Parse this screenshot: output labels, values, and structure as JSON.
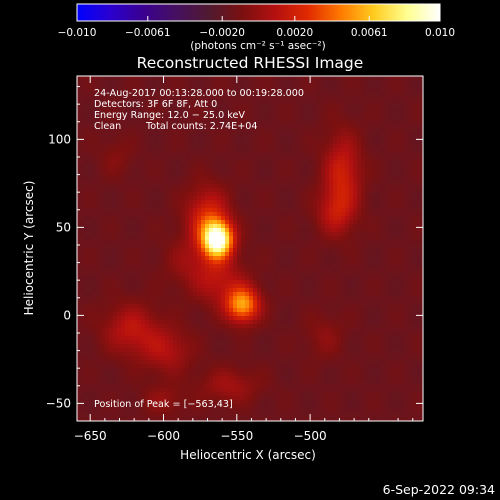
{
  "colorbar": {
    "min": -0.01,
    "max": 0.01,
    "ticks": [
      {
        "value": -0.01,
        "label": "−0.010"
      },
      {
        "value": -0.0061,
        "label": "−0.0061"
      },
      {
        "value": -0.002,
        "label": "−0.0020"
      },
      {
        "value": 0.002,
        "label": "0.0020"
      },
      {
        "value": 0.0061,
        "label": "0.0061"
      },
      {
        "value": 0.01,
        "label": "0.010"
      }
    ],
    "unit_label": "(photons cm⁻² s⁻¹ asec⁻²)",
    "colors": [
      "#0000ff",
      "#2a00d0",
      "#3a0090",
      "#451060",
      "#501a30",
      "#7a1010",
      "#b41010",
      "#e02a00",
      "#ff7a00",
      "#ffcc20",
      "#ffff90",
      "#ffffff"
    ]
  },
  "chart_data": {
    "type": "heatmap",
    "title": "Reconstructed RHESSI Image",
    "xlabel": "Heliocentric X (arcsec)",
    "ylabel": "Heliocentric Y (arcsec)",
    "xlim": [
      -659,
      -423
    ],
    "ylim": [
      -60,
      136
    ],
    "xticks": [
      {
        "value": -650,
        "label": "−650"
      },
      {
        "value": -600,
        "label": "−600"
      },
      {
        "value": -550,
        "label": "−550"
      },
      {
        "value": -500,
        "label": "−500"
      }
    ],
    "yticks": [
      {
        "value": -50,
        "label": "−50"
      },
      {
        "value": 0,
        "label": "0"
      },
      {
        "value": 50,
        "label": "50"
      },
      {
        "value": 100,
        "label": "100"
      }
    ],
    "annotations": {
      "time_range": "24‑Aug‑2017 00:13:28.000 to 00:19:28.000",
      "detectors": "Detectors: 3F 6F 8F, Att 0",
      "energy": "Energy Range: 12.0 − 25.0 keV",
      "method": "Clean",
      "counts": "Total counts: 2.74E+04",
      "peak": "Position of Peak = [−563,43]"
    },
    "peak_position": [
      -563,
      43
    ],
    "sources": [
      {
        "x": -563,
        "y": 43,
        "sx": 7,
        "sy": 7,
        "amp": 1.0
      },
      {
        "x": -570,
        "y": 55,
        "sx": 10,
        "sy": 12,
        "amp": 0.35
      },
      {
        "x": -546,
        "y": 6,
        "sx": 8,
        "sy": 7,
        "amp": 0.6
      },
      {
        "x": -562,
        "y": 20,
        "sx": 12,
        "sy": 10,
        "amp": 0.22
      },
      {
        "x": -583,
        "y": 30,
        "sx": 12,
        "sy": 10,
        "amp": 0.12
      },
      {
        "x": -478,
        "y": 80,
        "sx": 9,
        "sy": 16,
        "amp": 0.3
      },
      {
        "x": -483,
        "y": 58,
        "sx": 9,
        "sy": 9,
        "amp": 0.2
      },
      {
        "x": -622,
        "y": -8,
        "sx": 13,
        "sy": 10,
        "amp": 0.24
      },
      {
        "x": -598,
        "y": -20,
        "sx": 12,
        "sy": 9,
        "amp": 0.2
      },
      {
        "x": -555,
        "y": -40,
        "sx": 14,
        "sy": 7,
        "amp": 0.16
      },
      {
        "x": -632,
        "y": 90,
        "sx": 8,
        "sy": 8,
        "amp": 0.08
      },
      {
        "x": -490,
        "y": -12,
        "sx": 9,
        "sy": 9,
        "amp": 0.1
      },
      {
        "x": -600,
        "y": -48,
        "sx": 10,
        "sy": 6,
        "amp": 0.12
      }
    ]
  },
  "footer": {
    "date_stamp": "6‑Sep‑2022 09:34"
  }
}
